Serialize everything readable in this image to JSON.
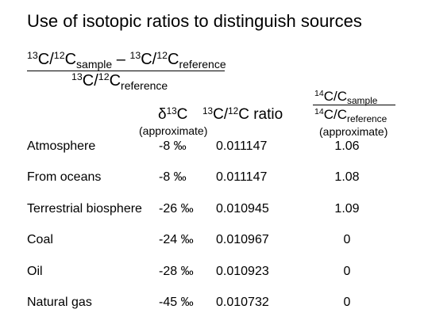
{
  "title": "Use of isotopic ratios to distinguish sources",
  "formula": {
    "numerator": {
      "a_sup": "13",
      "a_mid": "C/",
      "a_sup2": "12",
      "a_c": "C",
      "a_sub": "sample",
      "minus": " – ",
      "b_sup": "13",
      "b_mid": "C/",
      "b_sup2": "12",
      "b_c": "C",
      "b_sub": "reference"
    },
    "denominator": {
      "sup": "13",
      "mid": "C/",
      "sup2": "12",
      "c": "C",
      "sub": "reference"
    }
  },
  "headers": {
    "delta": {
      "symbol": "δ",
      "sup": "13",
      "c": "C",
      "note": "(approximate)"
    },
    "ratio": {
      "sup": "13",
      "mid": "C/",
      "sup2": "12",
      "c": "C ratio"
    },
    "c14": {
      "num": {
        "sup": "14",
        "mid": "C/C",
        "sub": "sample"
      },
      "den": {
        "sup": "14",
        "mid": "C/C",
        "sub": "reference"
      },
      "note": "(approximate)"
    }
  },
  "rows": [
    {
      "source": "Atmosphere",
      "delta13c": "-8 ‰",
      "ratio": "0.011147",
      "c14": "1.06"
    },
    {
      "source": "From oceans",
      "delta13c": "-8 ‰",
      "ratio": "0.011147",
      "c14": "1.08"
    },
    {
      "source": "Terrestrial biosphere",
      "delta13c": "-26 ‰",
      "ratio": "0.010945",
      "c14": "1.09"
    },
    {
      "source": "Coal",
      "delta13c": "-24 ‰",
      "ratio": "0.010967",
      "c14": "0"
    },
    {
      "source": "Oil",
      "delta13c": "-28 ‰",
      "ratio": "0.010923",
      "c14": "0"
    },
    {
      "source": "Natural gas",
      "delta13c": "-45 ‰",
      "ratio": "0.010732",
      "c14": "0"
    }
  ]
}
